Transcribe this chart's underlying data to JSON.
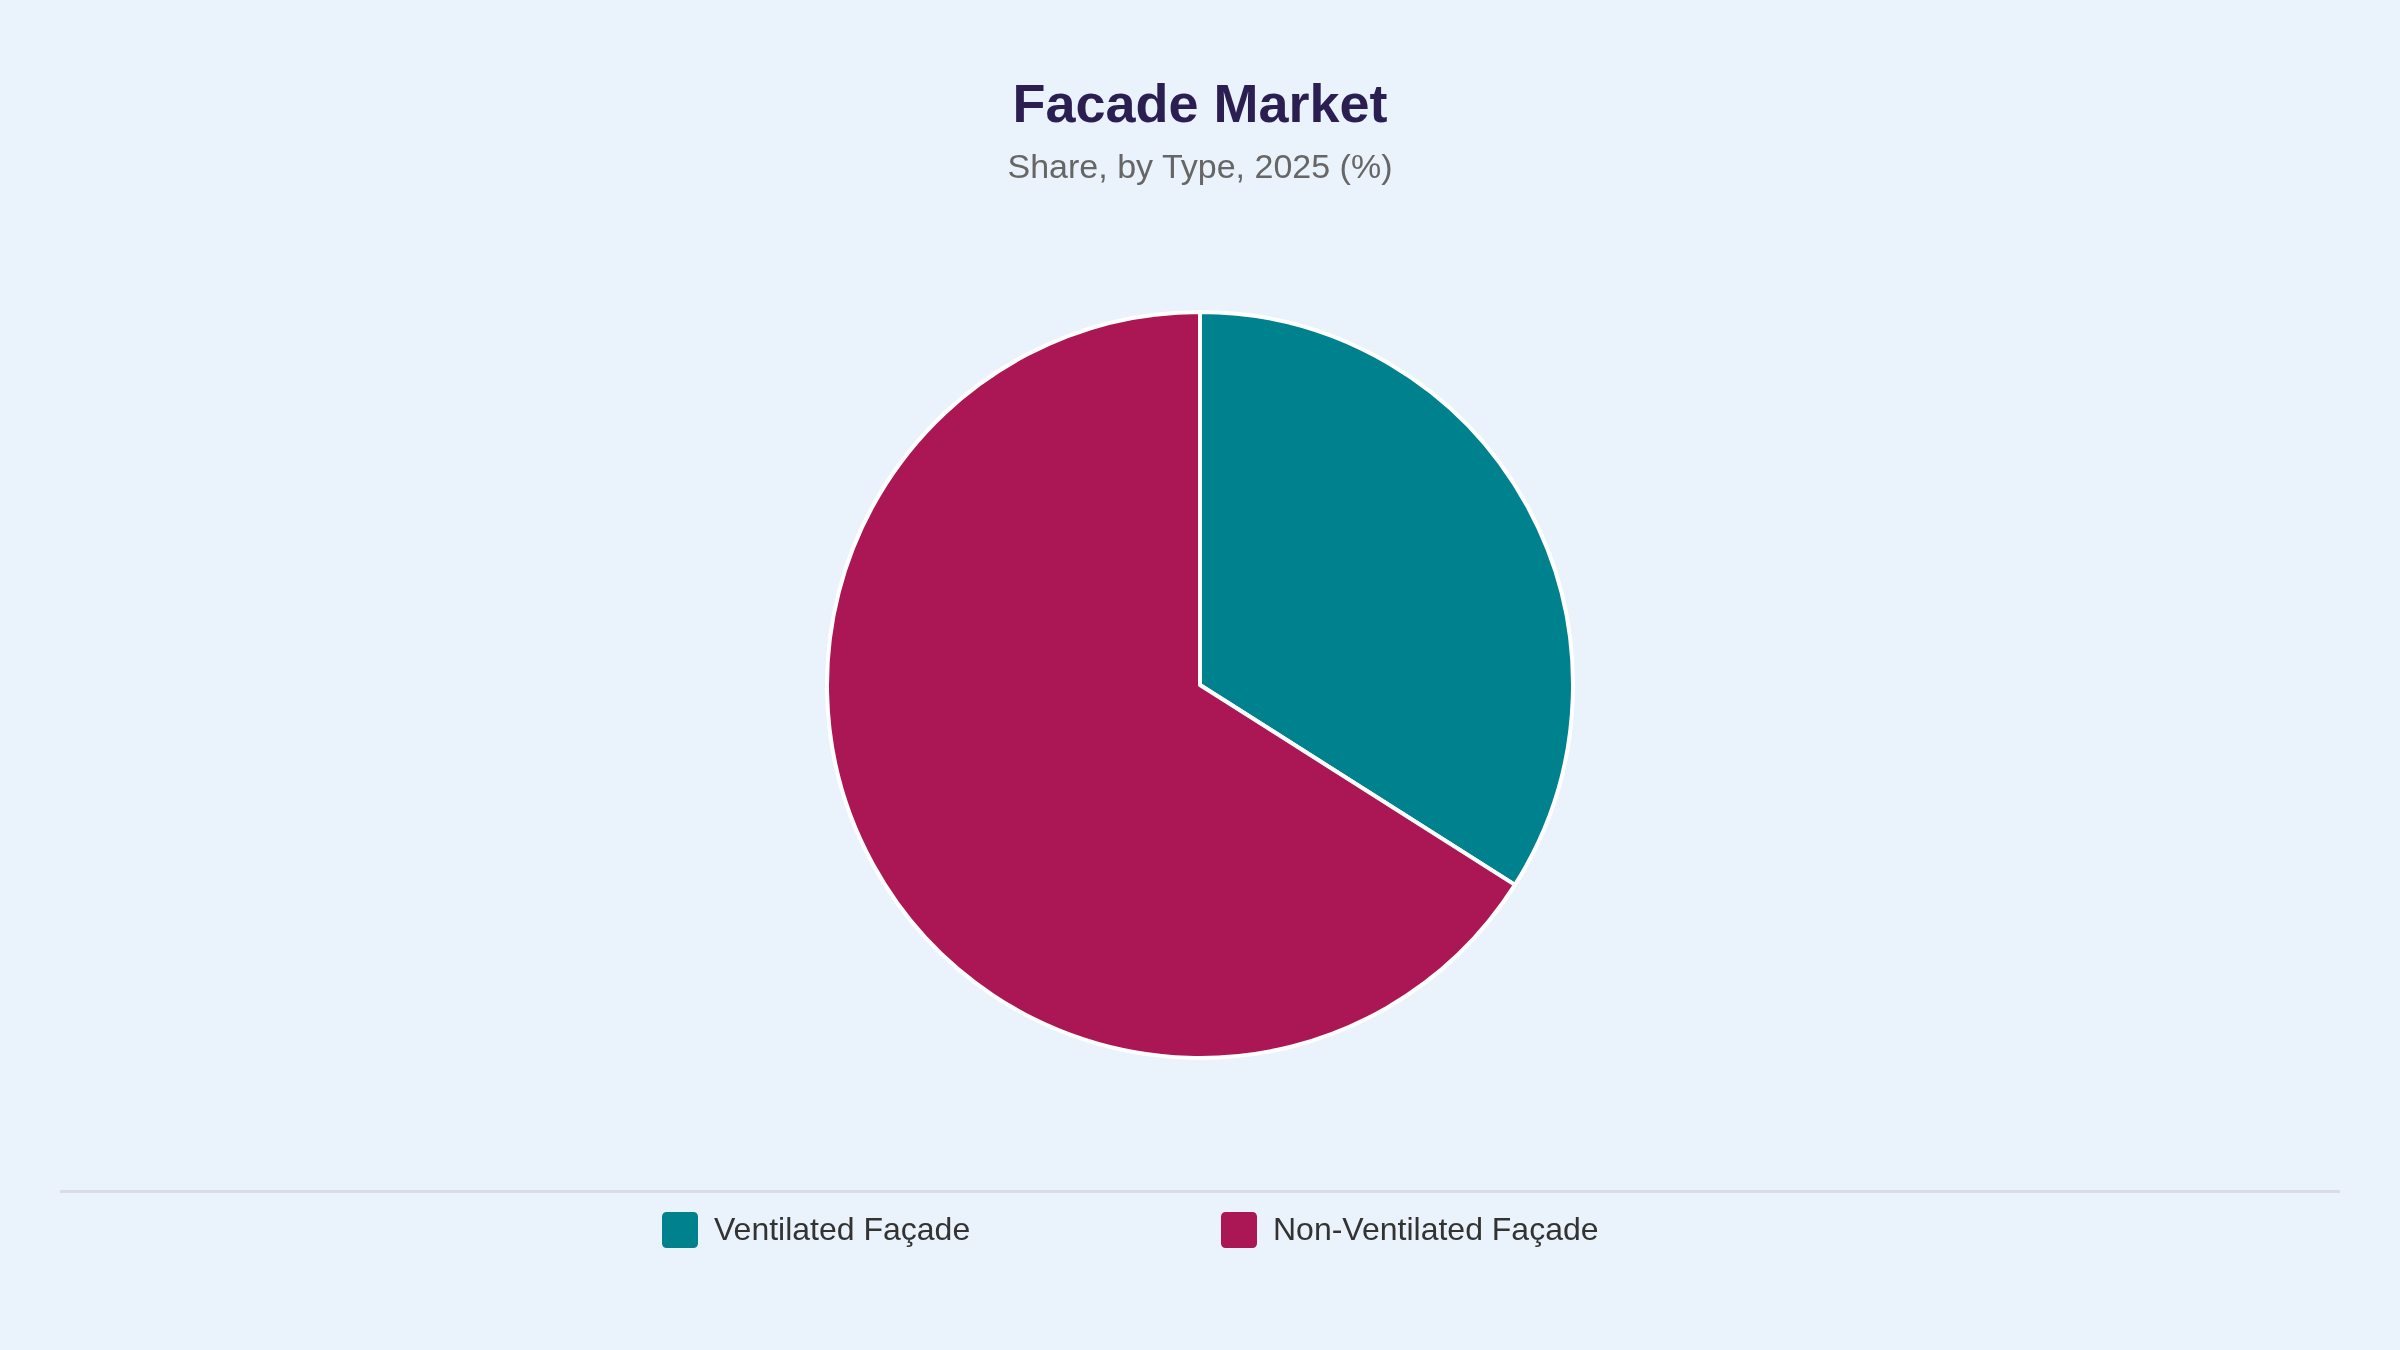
{
  "chart_data": {
    "type": "pie",
    "title": "Facade Market",
    "subtitle": "Share, by Type, 2025 (%)",
    "categories": [
      "Ventilated Façade",
      "Non-Ventilated Façade"
    ],
    "values": [
      34,
      66
    ],
    "colors": [
      "#00818e",
      "#ab1654"
    ],
    "legend": "bottom"
  }
}
